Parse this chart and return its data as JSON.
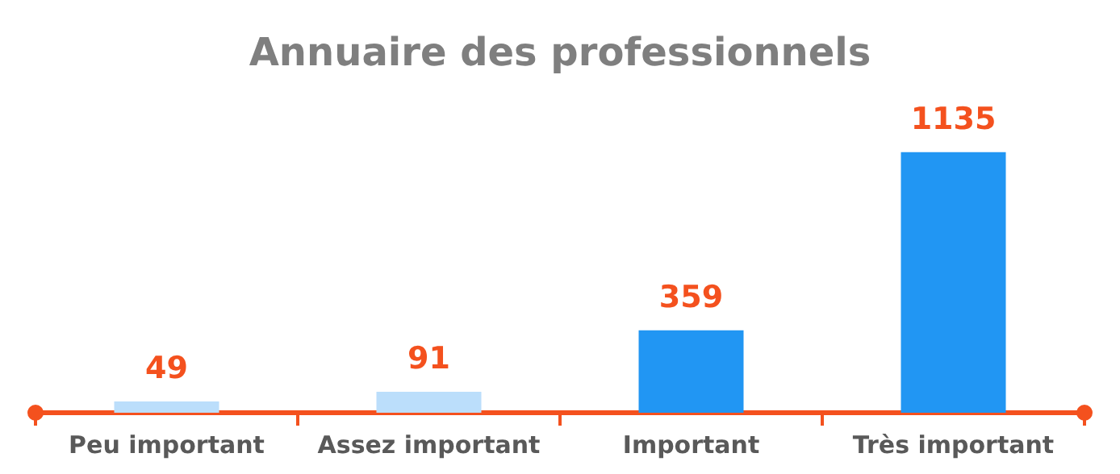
{
  "chart_data": {
    "type": "bar",
    "title": "Annuaire des professionnels",
    "categories": [
      "Peu important",
      "Assez important",
      "Important",
      "Très important"
    ],
    "values": [
      49,
      91,
      359,
      1135
    ],
    "colors": [
      "#bbdefb",
      "#bbdefb",
      "#2196f3",
      "#2196f3"
    ],
    "data_labels": true,
    "grid": false,
    "legend": false
  }
}
